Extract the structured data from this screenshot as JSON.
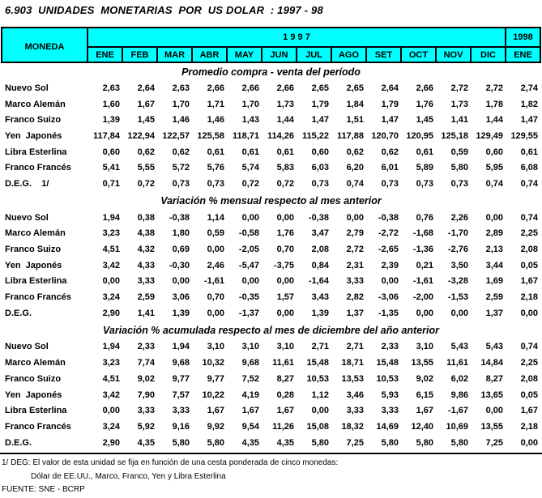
{
  "title": "6.903  UNIDADES  MONETARIAS  POR  US DOLAR  : 1997 - 98",
  "header": {
    "moneda_label": "MONEDA",
    "year_1997": "1 9 9 7",
    "year_1998": "1998",
    "months_1997": [
      "ENE",
      "FEB",
      "MAR",
      "ABR",
      "MAY",
      "JUN",
      "JUL",
      "AGO",
      "SET",
      "OCT",
      "NOV",
      "DIC"
    ],
    "month_1998": "ENE"
  },
  "sections": [
    {
      "title": "Promedio compra - venta del período",
      "rows": [
        {
          "label": "Nuevo Sol",
          "values": [
            "2,63",
            "2,64",
            "2,63",
            "2,66",
            "2,66",
            "2,66",
            "2,65",
            "2,65",
            "2,64",
            "2,66",
            "2,72",
            "2,72",
            "2,74"
          ]
        },
        {
          "label": "Marco Alemán",
          "values": [
            "1,60",
            "1,67",
            "1,70",
            "1,71",
            "1,70",
            "1,73",
            "1,79",
            "1,84",
            "1,79",
            "1,76",
            "1,73",
            "1,78",
            "1,82"
          ]
        },
        {
          "label": "Franco Suizo",
          "values": [
            "1,39",
            "1,45",
            "1,46",
            "1,46",
            "1,43",
            "1,44",
            "1,47",
            "1,51",
            "1,47",
            "1,45",
            "1,41",
            "1,44",
            "1,47"
          ]
        },
        {
          "label": "Yen  Japonés",
          "values": [
            "117,84",
            "122,94",
            "122,57",
            "125,58",
            "118,71",
            "114,26",
            "115,22",
            "117,88",
            "120,70",
            "120,95",
            "125,18",
            "129,49",
            "129,55"
          ]
        },
        {
          "label": "Libra Esterlina",
          "values": [
            "0,60",
            "0,62",
            "0,62",
            "0,61",
            "0,61",
            "0,61",
            "0,60",
            "0,62",
            "0,62",
            "0,61",
            "0,59",
            "0,60",
            "0,61"
          ]
        },
        {
          "label": "Franco Francés",
          "values": [
            "5,41",
            "5,55",
            "5,72",
            "5,76",
            "5,74",
            "5,83",
            "6,03",
            "6,20",
            "6,01",
            "5,89",
            "5,80",
            "5,95",
            "6,08"
          ]
        },
        {
          "label": "D.E.G.    1/",
          "values": [
            "0,71",
            "0,72",
            "0,73",
            "0,73",
            "0,72",
            "0,72",
            "0,73",
            "0,74",
            "0,73",
            "0,73",
            "0,73",
            "0,74",
            "0,74"
          ]
        }
      ]
    },
    {
      "title": "Variación % mensual respecto al mes anterior",
      "rows": [
        {
          "label": "Nuevo Sol",
          "values": [
            "1,94",
            "0,38",
            "-0,38",
            "1,14",
            "0,00",
            "0,00",
            "-0,38",
            "0,00",
            "-0,38",
            "0,76",
            "2,26",
            "0,00",
            "0,74"
          ]
        },
        {
          "label": "Marco Alemán",
          "values": [
            "3,23",
            "4,38",
            "1,80",
            "0,59",
            "-0,58",
            "1,76",
            "3,47",
            "2,79",
            "-2,72",
            "-1,68",
            "-1,70",
            "2,89",
            "2,25"
          ]
        },
        {
          "label": "Franco Suizo",
          "values": [
            "4,51",
            "4,32",
            "0,69",
            "0,00",
            "-2,05",
            "0,70",
            "2,08",
            "2,72",
            "-2,65",
            "-1,36",
            "-2,76",
            "2,13",
            "2,08"
          ]
        },
        {
          "label": "Yen  Japonés",
          "values": [
            "3,42",
            "4,33",
            "-0,30",
            "2,46",
            "-5,47",
            "-3,75",
            "0,84",
            "2,31",
            "2,39",
            "0,21",
            "3,50",
            "3,44",
            "0,05"
          ]
        },
        {
          "label": "Libra Esterlina",
          "values": [
            "0,00",
            "3,33",
            "0,00",
            "-1,61",
            "0,00",
            "0,00",
            "-1,64",
            "3,33",
            "0,00",
            "-1,61",
            "-3,28",
            "1,69",
            "1,67"
          ]
        },
        {
          "label": "Franco Francés",
          "values": [
            "3,24",
            "2,59",
            "3,06",
            "0,70",
            "-0,35",
            "1,57",
            "3,43",
            "2,82",
            "-3,06",
            "-2,00",
            "-1,53",
            "2,59",
            "2,18"
          ]
        },
        {
          "label": "D.E.G.",
          "values": [
            "2,90",
            "1,41",
            "1,39",
            "0,00",
            "-1,37",
            "0,00",
            "1,39",
            "1,37",
            "-1,35",
            "0,00",
            "0,00",
            "1,37",
            "0,00"
          ]
        }
      ]
    },
    {
      "title": "Variación % acumulada respecto al mes de diciembre del año anterior",
      "rows": [
        {
          "label": "Nuevo Sol",
          "values": [
            "1,94",
            "2,33",
            "1,94",
            "3,10",
            "3,10",
            "3,10",
            "2,71",
            "2,71",
            "2,33",
            "3,10",
            "5,43",
            "5,43",
            "0,74"
          ]
        },
        {
          "label": "Marco Alemán",
          "values": [
            "3,23",
            "7,74",
            "9,68",
            "10,32",
            "9,68",
            "11,61",
            "15,48",
            "18,71",
            "15,48",
            "13,55",
            "11,61",
            "14,84",
            "2,25"
          ]
        },
        {
          "label": "Franco Suizo",
          "values": [
            "4,51",
            "9,02",
            "9,77",
            "9,77",
            "7,52",
            "8,27",
            "10,53",
            "13,53",
            "10,53",
            "9,02",
            "6,02",
            "8,27",
            "2,08"
          ]
        },
        {
          "label": "Yen  Japonés",
          "values": [
            "3,42",
            "7,90",
            "7,57",
            "10,22",
            "4,19",
            "0,28",
            "1,12",
            "3,46",
            "5,93",
            "6,15",
            "9,86",
            "13,65",
            "0,05"
          ]
        },
        {
          "label": "Libra Esterlina",
          "values": [
            "0,00",
            "3,33",
            "3,33",
            "1,67",
            "1,67",
            "1,67",
            "0,00",
            "3,33",
            "3,33",
            "1,67",
            "-1,67",
            "0,00",
            "1,67"
          ]
        },
        {
          "label": "Franco Francés",
          "values": [
            "3,24",
            "5,92",
            "9,16",
            "9,92",
            "9,54",
            "11,26",
            "15,08",
            "18,32",
            "14,69",
            "12,40",
            "10,69",
            "13,55",
            "2,18"
          ]
        },
        {
          "label": "D.E.G.",
          "values": [
            "2,90",
            "4,35",
            "5,80",
            "5,80",
            "4,35",
            "4,35",
            "5,80",
            "7,25",
            "5,80",
            "5,80",
            "5,80",
            "7,25",
            "0,00"
          ]
        }
      ]
    }
  ],
  "footnotes": {
    "line1": "1/ DEG: El valor de esta unidad se fija en función de una cesta ponderada de cinco monedas:",
    "line2": "Dólar de EE.UU., Marco, Franco, Yen y Libra Esterlina",
    "line3": "FUENTE: SNE - BCRP"
  },
  "colors": {
    "header_bg": "#00FFFF",
    "border": "#000000",
    "text": "#000000",
    "background": "#FFFFFF"
  }
}
